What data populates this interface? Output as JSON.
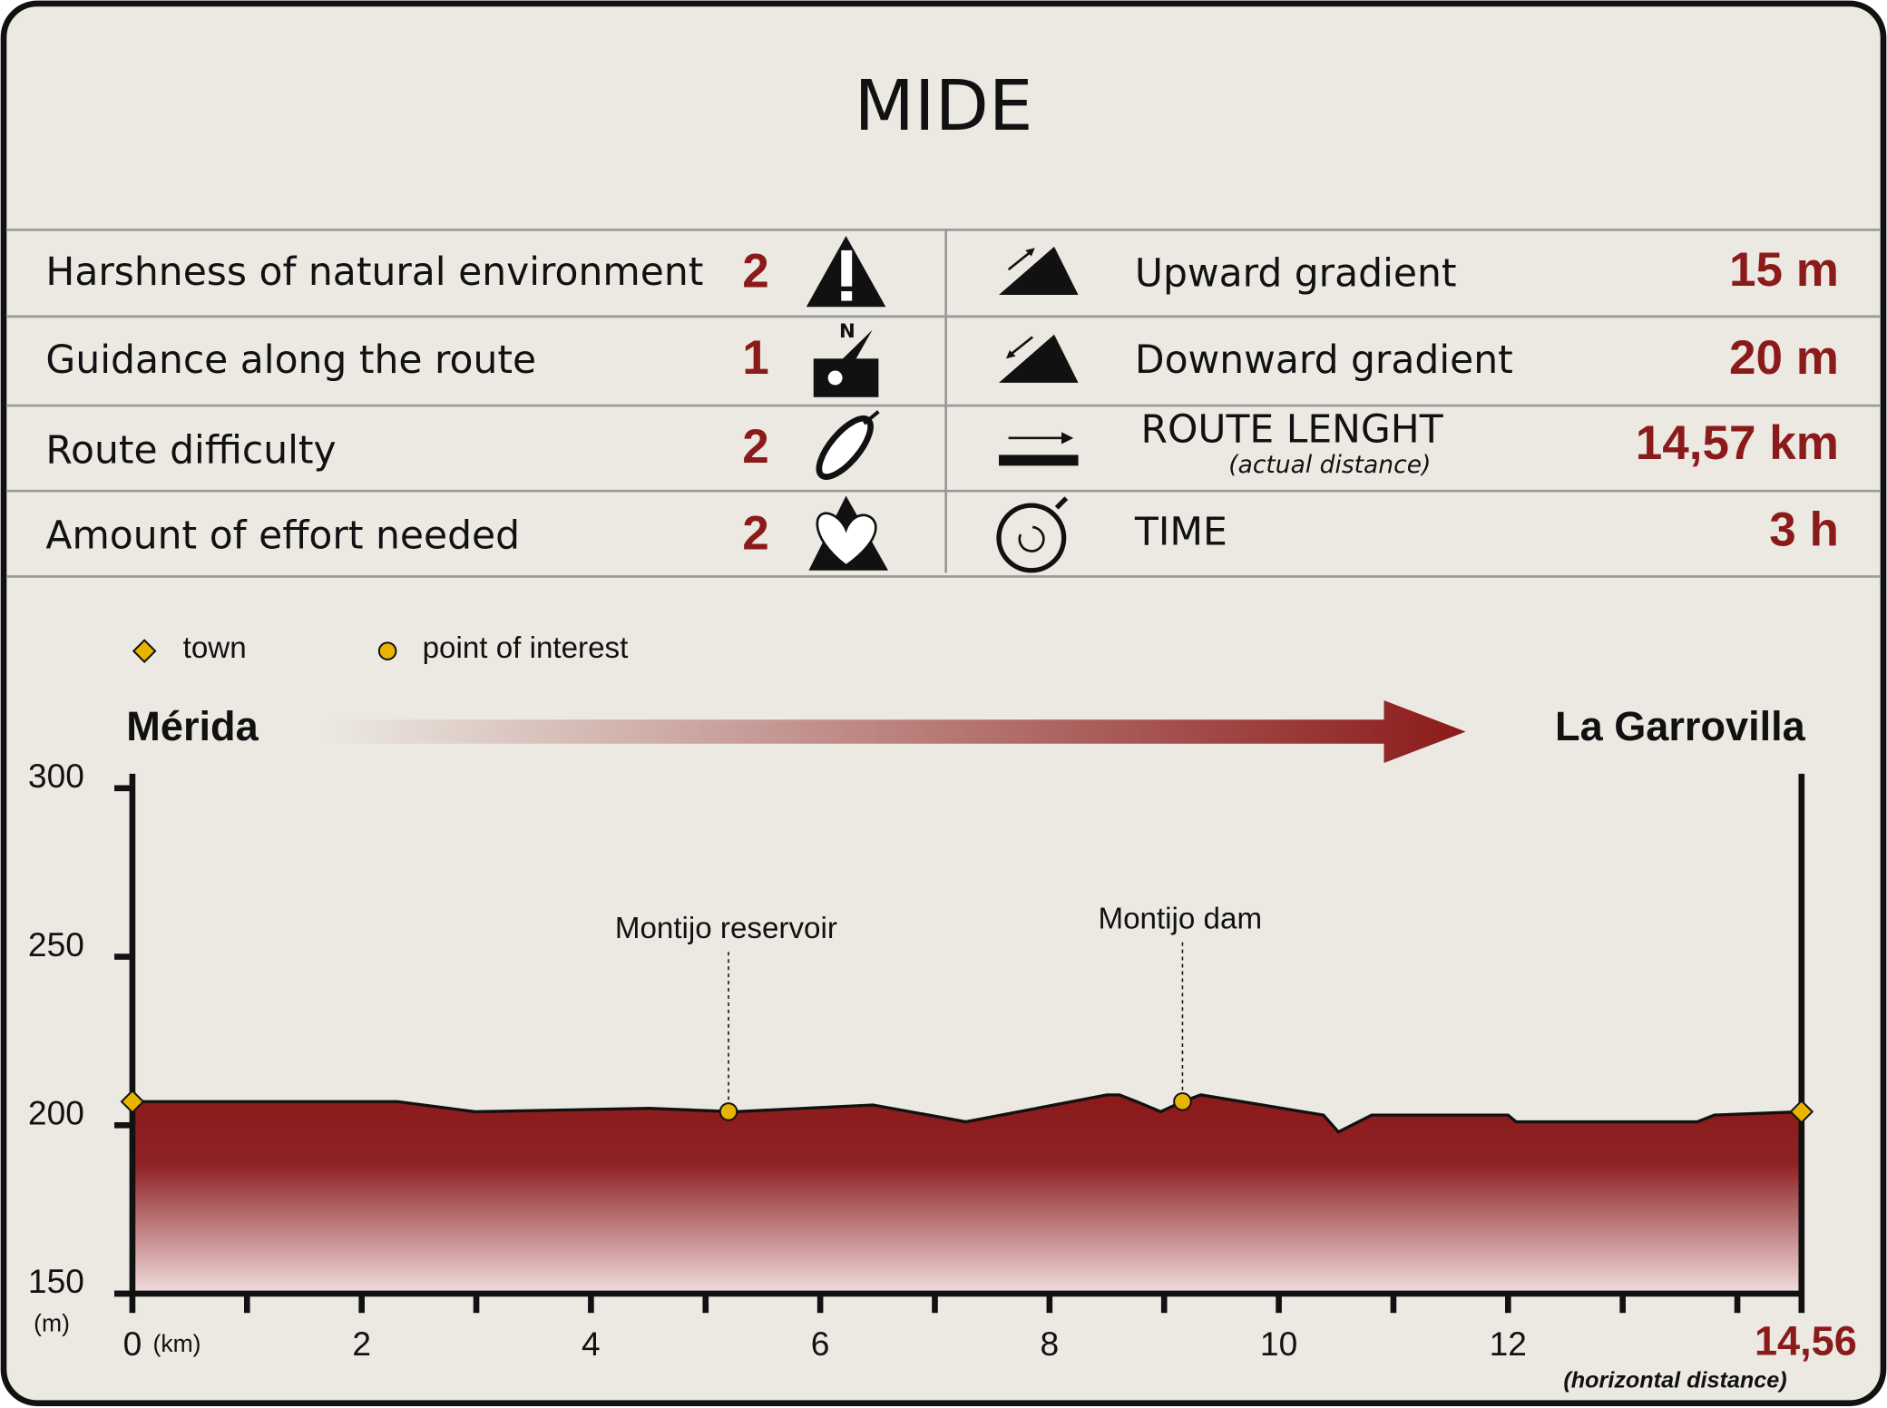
{
  "title": "MIDE",
  "ratings": {
    "rows": [
      {
        "label": "Harshness of natural environment",
        "value": "2"
      },
      {
        "label": "Guidance along the route",
        "value": "1"
      },
      {
        "label": "Route difficulty",
        "value": "2"
      },
      {
        "label": "Amount of effort needed",
        "value": "2"
      }
    ]
  },
  "stats": {
    "rows": [
      {
        "label": "Upward gradient",
        "value": "15 m"
      },
      {
        "label": "Downward gradient",
        "value": "20 m"
      },
      {
        "label": "ROUTE LENGHT",
        "note": "(actual distance)",
        "value": "14,57 km"
      },
      {
        "label": "TIME",
        "value": "3 h"
      }
    ]
  },
  "chart_data": {
    "type": "area",
    "color": "#8b1a1a",
    "marker_color": "#e8b400",
    "x": [
      0,
      2.31,
      2.99,
      4.51,
      5.25,
      6.46,
      7.27,
      8.5,
      8.61,
      8.76,
      8.97,
      9.16,
      9.32,
      10.39,
      10.52,
      10.81,
      12.0,
      12.07,
      13.65,
      13.8,
      14.56
    ],
    "values": [
      207,
      207,
      204,
      205,
      204,
      206,
      201,
      209,
      209,
      207,
      204,
      207,
      209,
      203,
      198,
      203,
      203,
      201,
      201,
      203,
      204
    ],
    "xlim": [
      0,
      14.56
    ],
    "ylim": [
      150,
      300
    ],
    "xticks": [
      0,
      2,
      4,
      6,
      8,
      10,
      12,
      {
        "value": 14.56,
        "label": "14,56"
      }
    ],
    "xminorticks": [
      1,
      3,
      5,
      7,
      9,
      11,
      13,
      14
    ],
    "yticks": [
      150,
      200,
      250,
      300
    ],
    "x_unit": "(km)",
    "y_unit": "(m)",
    "x_note": "(horizontal distance)",
    "towns": {
      "label": "town",
      "points": [
        {
          "name": "Mérida",
          "x": 0,
          "y": 207
        },
        {
          "name": "La Garrovilla",
          "x": 14.56,
          "y": 204
        }
      ]
    },
    "points_of_interest": {
      "label": "point of interest",
      "points": [
        {
          "name": "Montijo reservoir",
          "x": 5.2,
          "y": 204
        },
        {
          "name": "Montijo dam",
          "x": 9.16,
          "y": 207
        }
      ]
    }
  }
}
